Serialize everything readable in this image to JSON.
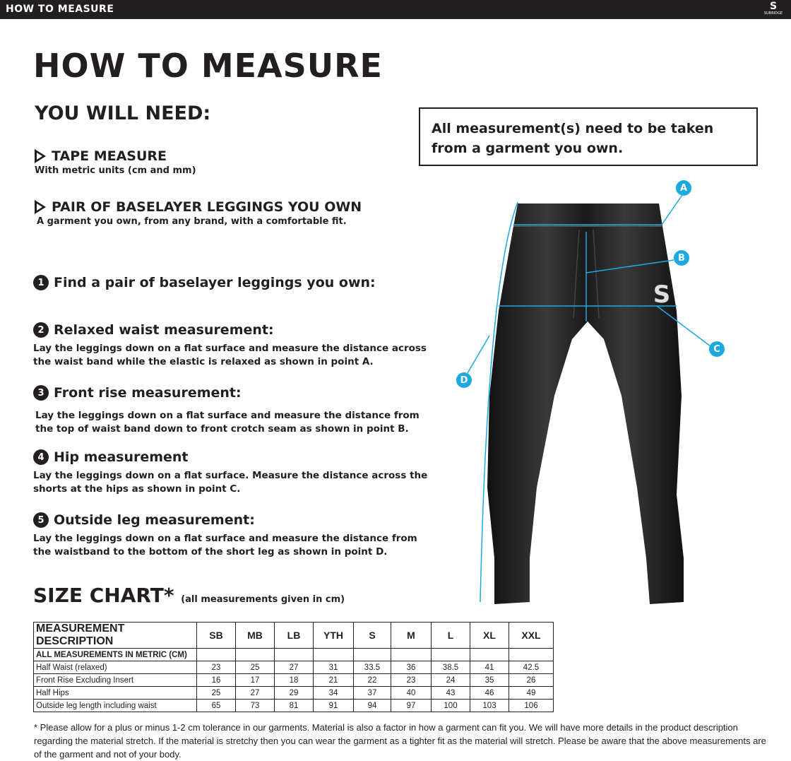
{
  "topbar": {
    "title": "HOW TO MEASURE",
    "logo": "SURRIDGE"
  },
  "title": "HOW TO MEASURE",
  "need": {
    "heading": "YOU WILL NEED:",
    "items": [
      {
        "title": "TAPE MEASURE",
        "sub": "With metric units (cm and mm)"
      },
      {
        "title": "PAIR OF BASELAYER LEGGINGS YOU OWN",
        "sub": "A garment you own, from any brand, with a comfortable fit."
      }
    ]
  },
  "note": "All measurement(s) need to be taken from a garment you own.",
  "steps": [
    {
      "n": "1",
      "title": "Find a pair of baselayer leggings you own:",
      "desc": ""
    },
    {
      "n": "2",
      "title": "Relaxed waist measurement:",
      "desc": "Lay the leggings down on a flat surface and measure the distance across the waist band while the elastic is relaxed as shown in point A."
    },
    {
      "n": "3",
      "title": "Front rise measurement:",
      "desc": "Lay the leggings down on a flat surface and measure the distance from the top of waist band down to front crotch seam as shown in point B."
    },
    {
      "n": "4",
      "title": "Hip measurement",
      "desc": "Lay the leggings down on a flat surface. Measure the distance across the shorts at the hips as shown in point C."
    },
    {
      "n": "5",
      "title": "Outside leg measurement:",
      "desc": "Lay the leggings down on a flat surface and measure the distance from the waistband to the bottom of the short leg as shown in point D."
    }
  ],
  "diagram": {
    "labels": [
      "A",
      "B",
      "C",
      "D"
    ],
    "accent": "#1ca9e1"
  },
  "size_chart": {
    "title": "SIZE CHART*",
    "subtitle": "(all measurements given in cm)",
    "headers": [
      "MEASUREMENT DESCRIPTION",
      "SB",
      "MB",
      "LB",
      "YTH",
      "S",
      "M",
      "L",
      "XL",
      "XXL"
    ],
    "units_row": "ALL MEASUREMENTS IN METRIC (CM)",
    "rows": [
      [
        "Half Waist (relaxed)",
        "23",
        "25",
        "27",
        "31",
        "33.5",
        "36",
        "38.5",
        "41",
        "42.5"
      ],
      [
        "Front Rise Excluding Insert",
        "16",
        "17",
        "18",
        "21",
        "22",
        "23",
        "24",
        "35",
        "26"
      ],
      [
        "Half Hips",
        "25",
        "27",
        "29",
        "34",
        "37",
        "40",
        "43",
        "46",
        "49"
      ],
      [
        "Outside leg length including waist",
        "65",
        "73",
        "81",
        "91",
        "94",
        "97",
        "100",
        "103",
        "106"
      ]
    ]
  },
  "footnote": "* Please allow for a plus or minus 1-2 cm tolerance in our garments. Material is also a factor in how a garment can fit you. We will have more details in the product description regarding the material stretch.  If the material is stretchy then you can wear the garment as a tighter fit as the material will stretch.  Please be aware that the above measurements are of the garment and not of your body."
}
